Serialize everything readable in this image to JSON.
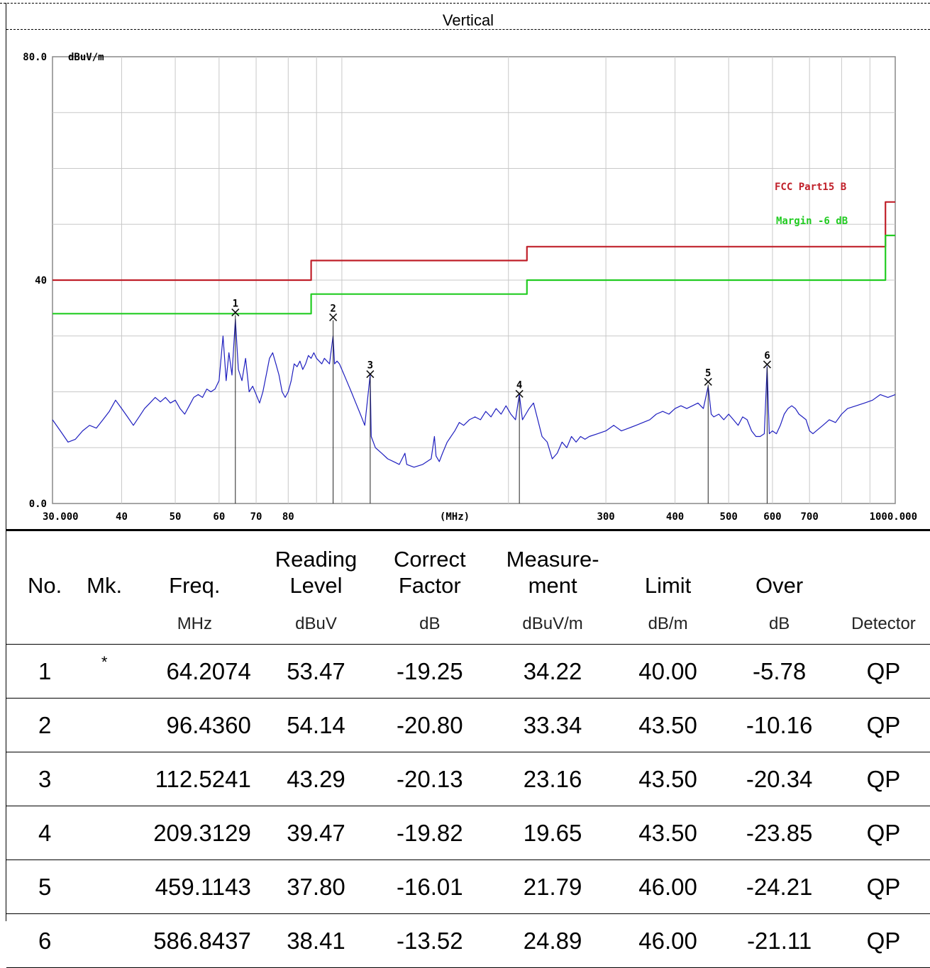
{
  "title": "Vertical",
  "chart_data": {
    "type": "line",
    "title": "Vertical",
    "y_unit": "dBuV/m",
    "x_unit": "(MHz)",
    "xscale": "log",
    "xlim": [
      30.0,
      1000.0
    ],
    "ylim": [
      0.0,
      80.0
    ],
    "y_tick_labels": [
      {
        "value": 80,
        "label": "80.0"
      },
      {
        "value": 40,
        "label": "40"
      },
      {
        "value": 0,
        "label": "0.0"
      }
    ],
    "x_tick_labels": [
      {
        "value": 30,
        "label": "30.000"
      },
      {
        "value": 40,
        "label": "40"
      },
      {
        "value": 50,
        "label": "50"
      },
      {
        "value": 60,
        "label": "60"
      },
      {
        "value": 70,
        "label": "70"
      },
      {
        "value": 80,
        "label": "80"
      },
      {
        "value": 300,
        "label": "300"
      },
      {
        "value": 400,
        "label": "400"
      },
      {
        "value": 500,
        "label": "500"
      },
      {
        "value": 600,
        "label": "600"
      },
      {
        "value": 700,
        "label": "700"
      },
      {
        "value": 1000,
        "label": "1000.000"
      }
    ],
    "x_gridlines": [
      40,
      50,
      60,
      70,
      80,
      90,
      100,
      200,
      300,
      400,
      500,
      600,
      700,
      800,
      900
    ],
    "y_gridlines": [
      10,
      20,
      30,
      40,
      50,
      60,
      70
    ],
    "grid": true,
    "legend_position": "right",
    "series": [
      {
        "name": "FCC Part15 B",
        "color": "#c0202a",
        "step": true,
        "points": [
          [
            30,
            40.0
          ],
          [
            88,
            40.0
          ],
          [
            88,
            43.5
          ],
          [
            216,
            43.5
          ],
          [
            216,
            46.0
          ],
          [
            960,
            46.0
          ],
          [
            960,
            54.0
          ],
          [
            1000,
            54.0
          ]
        ]
      },
      {
        "name": "Margin -6 dB",
        "color": "#22cc22",
        "step": true,
        "points": [
          [
            30,
            34.0
          ],
          [
            88,
            34.0
          ],
          [
            88,
            37.5
          ],
          [
            216,
            37.5
          ],
          [
            216,
            40.0
          ],
          [
            960,
            40.0
          ],
          [
            960,
            48.0
          ],
          [
            1000,
            48.0
          ]
        ]
      },
      {
        "color": "#1f1fbf",
        "points": [
          [
            30,
            15
          ],
          [
            31,
            13
          ],
          [
            32,
            11
          ],
          [
            33,
            11.5
          ],
          [
            34,
            13
          ],
          [
            35,
            14
          ],
          [
            36,
            13.5
          ],
          [
            37,
            15
          ],
          [
            38,
            16.5
          ],
          [
            39,
            18.5
          ],
          [
            40,
            17
          ],
          [
            41,
            15.5
          ],
          [
            42,
            14
          ],
          [
            43,
            15.5
          ],
          [
            44,
            17
          ],
          [
            45,
            18
          ],
          [
            46,
            19
          ],
          [
            47,
            18.2
          ],
          [
            48,
            19
          ],
          [
            49,
            18
          ],
          [
            50,
            18.5
          ],
          [
            51,
            17
          ],
          [
            52,
            16
          ],
          [
            53,
            17.5
          ],
          [
            54,
            19
          ],
          [
            55,
            19.5
          ],
          [
            56,
            19
          ],
          [
            57,
            20.5
          ],
          [
            58,
            20
          ],
          [
            59,
            20.5
          ],
          [
            60,
            22
          ],
          [
            61,
            30
          ],
          [
            61.8,
            22
          ],
          [
            62.5,
            27
          ],
          [
            63.3,
            23
          ],
          [
            64.2,
            33
          ],
          [
            65,
            24
          ],
          [
            66,
            22
          ],
          [
            67,
            26
          ],
          [
            68,
            20
          ],
          [
            69,
            21
          ],
          [
            70,
            19.5
          ],
          [
            71,
            18
          ],
          [
            72,
            20
          ],
          [
            73,
            23
          ],
          [
            74,
            26
          ],
          [
            75,
            27
          ],
          [
            76,
            25
          ],
          [
            77,
            23
          ],
          [
            78,
            20
          ],
          [
            79,
            19
          ],
          [
            80,
            20
          ],
          [
            81,
            22
          ],
          [
            82,
            25
          ],
          [
            83,
            24.5
          ],
          [
            84,
            25.5
          ],
          [
            85,
            24
          ],
          [
            86,
            25
          ],
          [
            87,
            26.5
          ],
          [
            88,
            26
          ],
          [
            89,
            27
          ],
          [
            90,
            26
          ],
          [
            91,
            25.5
          ],
          [
            92,
            25
          ],
          [
            93,
            26
          ],
          [
            94,
            25.5
          ],
          [
            95,
            25
          ],
          [
            96.4,
            30
          ],
          [
            97,
            25
          ],
          [
            98,
            25.5
          ],
          [
            99,
            25
          ],
          [
            100,
            24
          ],
          [
            102,
            22
          ],
          [
            104,
            20
          ],
          [
            106,
            18
          ],
          [
            108,
            16
          ],
          [
            110,
            14
          ],
          [
            112.5,
            23
          ],
          [
            113,
            12
          ],
          [
            115,
            10
          ],
          [
            118,
            9
          ],
          [
            121,
            8
          ],
          [
            124,
            7.5
          ],
          [
            127,
            7
          ],
          [
            130,
            9
          ],
          [
            131,
            7
          ],
          [
            135,
            6.5
          ],
          [
            140,
            7
          ],
          [
            145,
            8
          ],
          [
            147,
            12
          ],
          [
            148,
            8.5
          ],
          [
            150,
            7.5
          ],
          [
            152,
            9
          ],
          [
            155,
            11
          ],
          [
            160,
            13
          ],
          [
            163,
            14.5
          ],
          [
            166,
            14
          ],
          [
            170,
            15
          ],
          [
            174,
            15.5
          ],
          [
            178,
            15
          ],
          [
            182,
            16.5
          ],
          [
            186,
            15.5
          ],
          [
            190,
            17
          ],
          [
            194,
            16
          ],
          [
            198,
            17.5
          ],
          [
            202,
            16
          ],
          [
            206,
            15
          ],
          [
            209.3,
            19.5
          ],
          [
            212,
            15
          ],
          [
            215,
            16
          ],
          [
            218,
            17
          ],
          [
            222,
            18
          ],
          [
            226,
            15
          ],
          [
            230,
            12
          ],
          [
            235,
            11
          ],
          [
            240,
            8
          ],
          [
            245,
            9
          ],
          [
            250,
            11
          ],
          [
            255,
            10
          ],
          [
            260,
            12
          ],
          [
            265,
            11
          ],
          [
            270,
            12
          ],
          [
            275,
            11.5
          ],
          [
            280,
            12
          ],
          [
            290,
            12.5
          ],
          [
            300,
            13
          ],
          [
            310,
            14
          ],
          [
            320,
            13
          ],
          [
            330,
            13.5
          ],
          [
            340,
            14
          ],
          [
            350,
            14.5
          ],
          [
            360,
            15
          ],
          [
            370,
            16
          ],
          [
            380,
            16.5
          ],
          [
            390,
            16
          ],
          [
            400,
            17
          ],
          [
            410,
            17.5
          ],
          [
            420,
            17
          ],
          [
            430,
            17.5
          ],
          [
            440,
            18
          ],
          [
            450,
            17
          ],
          [
            459.1,
            21
          ],
          [
            465,
            16
          ],
          [
            470,
            15.5
          ],
          [
            480,
            16
          ],
          [
            490,
            15
          ],
          [
            500,
            16
          ],
          [
            510,
            15
          ],
          [
            520,
            14
          ],
          [
            530,
            15.5
          ],
          [
            540,
            15
          ],
          [
            550,
            13
          ],
          [
            560,
            12
          ],
          [
            570,
            12
          ],
          [
            580,
            12.5
          ],
          [
            586.8,
            24.5
          ],
          [
            592,
            12.5
          ],
          [
            600,
            13
          ],
          [
            610,
            12.5
          ],
          [
            620,
            14
          ],
          [
            630,
            16
          ],
          [
            640,
            17
          ],
          [
            650,
            17.5
          ],
          [
            660,
            17
          ],
          [
            670,
            16
          ],
          [
            680,
            15.5
          ],
          [
            690,
            15
          ],
          [
            700,
            13
          ],
          [
            710,
            12.5
          ],
          [
            720,
            13
          ],
          [
            740,
            14
          ],
          [
            760,
            15
          ],
          [
            780,
            14.5
          ],
          [
            800,
            16
          ],
          [
            820,
            17
          ],
          [
            850,
            17.5
          ],
          [
            880,
            18
          ],
          [
            910,
            18.5
          ],
          [
            940,
            19.5
          ],
          [
            970,
            19
          ],
          [
            1000,
            19.5
          ]
        ]
      }
    ],
    "markers": [
      {
        "label": "1",
        "freq": 64.2074,
        "level": 34.22
      },
      {
        "label": "2",
        "freq": 96.436,
        "level": 33.34
      },
      {
        "label": "3",
        "freq": 112.5241,
        "level": 23.16
      },
      {
        "label": "4",
        "freq": 209.3129,
        "level": 19.65
      },
      {
        "label": "5",
        "freq": 459.1143,
        "level": 21.79
      },
      {
        "label": "6",
        "freq": 586.8437,
        "level": 24.89
      }
    ]
  },
  "table": {
    "headers": [
      {
        "label": "No.",
        "lines": [
          "No."
        ]
      },
      {
        "label": "Mk.",
        "lines": [
          "Mk."
        ]
      },
      {
        "label": "Freq.",
        "lines": [
          "Freq."
        ]
      },
      {
        "label": "Reading Level",
        "lines": [
          "Reading",
          "Level"
        ]
      },
      {
        "label": "Correct Factor",
        "lines": [
          "Correct",
          "Factor"
        ]
      },
      {
        "label": "Measure- ment",
        "lines": [
          "Measure-",
          "ment"
        ]
      },
      {
        "label": "Limit",
        "lines": [
          "Limit"
        ]
      },
      {
        "label": "Over",
        "lines": [
          "Over"
        ]
      },
      {
        "label": "",
        "lines": [
          ""
        ]
      }
    ],
    "units": [
      "",
      "",
      "MHz",
      "dBuV",
      "dB",
      "dBuV/m",
      "dB/m",
      "dB",
      "Detector"
    ],
    "rows": [
      {
        "no": "1",
        "mk": "*",
        "freq": "64.2074",
        "reading": "53.47",
        "factor": "-19.25",
        "measurement": "34.22",
        "limit": "40.00",
        "over": "-5.78",
        "detector": "QP"
      },
      {
        "no": "2",
        "mk": "",
        "freq": "96.4360",
        "reading": "54.14",
        "factor": "-20.80",
        "measurement": "33.34",
        "limit": "43.50",
        "over": "-10.16",
        "detector": "QP"
      },
      {
        "no": "3",
        "mk": "",
        "freq": "112.5241",
        "reading": "43.29",
        "factor": "-20.13",
        "measurement": "23.16",
        "limit": "43.50",
        "over": "-20.34",
        "detector": "QP"
      },
      {
        "no": "4",
        "mk": "",
        "freq": "209.3129",
        "reading": "39.47",
        "factor": "-19.82",
        "measurement": "19.65",
        "limit": "43.50",
        "over": "-23.85",
        "detector": "QP"
      },
      {
        "no": "5",
        "mk": "",
        "freq": "459.1143",
        "reading": "37.80",
        "factor": "-16.01",
        "measurement": "21.79",
        "limit": "46.00",
        "over": "-24.21",
        "detector": "QP"
      },
      {
        "no": "6",
        "mk": "",
        "freq": "586.8437",
        "reading": "38.41",
        "factor": "-13.52",
        "measurement": "24.89",
        "limit": "46.00",
        "over": "-21.11",
        "detector": "QP"
      }
    ]
  }
}
